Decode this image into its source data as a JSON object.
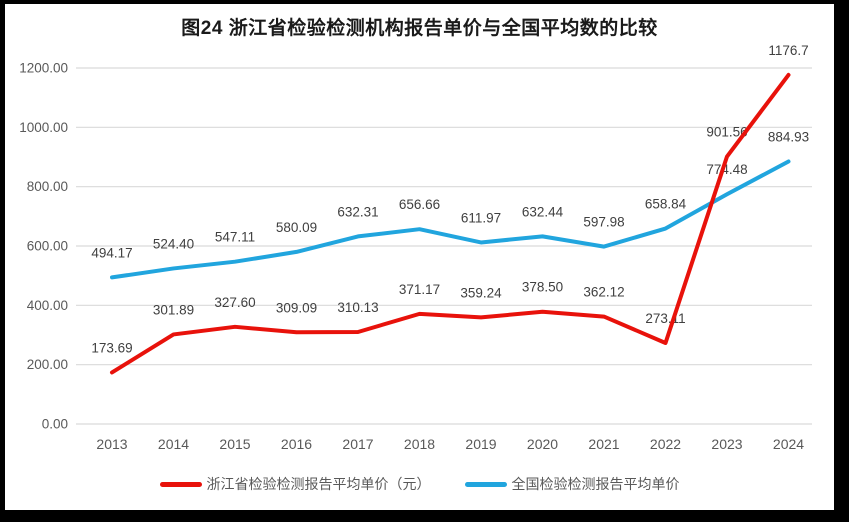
{
  "title": "图24  浙江省检验检测机构报告单价与全国平均数的比较",
  "colors": {
    "frame": "#000000",
    "background": "#ffffff"
  },
  "chart_data": {
    "type": "line",
    "title": "图24  浙江省检验检测机构报告单价与全国平均数的比较",
    "categories": [
      "2013",
      "2014",
      "2015",
      "2016",
      "2017",
      "2018",
      "2019",
      "2020",
      "2021",
      "2022",
      "2023",
      "2024"
    ],
    "series": [
      {
        "name": "浙江省检验检测报告平均单价（元）",
        "color": "#e8120b",
        "values": [
          173.69,
          301.89,
          327.6,
          309.09,
          310.13,
          371.17,
          359.24,
          378.5,
          362.12,
          273.11,
          901.56,
          1176.7
        ],
        "labels": [
          "173.69",
          "301.89",
          "327.60",
          "309.09",
          "310.13",
          "371.17",
          "359.24",
          "378.50",
          "362.12",
          "273.11",
          "901.56",
          "1176.7"
        ]
      },
      {
        "name": "全国检验检测报告平均单价",
        "color": "#21a5de",
        "values": [
          494.17,
          524.4,
          547.11,
          580.09,
          632.31,
          656.66,
          611.97,
          632.44,
          597.98,
          658.84,
          774.48,
          884.93
        ],
        "labels": [
          "494.17",
          "524.40",
          "547.11",
          "580.09",
          "632.31",
          "656.66",
          "611.97",
          "632.44",
          "597.98",
          "658.84",
          "774.48",
          "884.93"
        ]
      }
    ],
    "ylim": [
      0,
      1200
    ],
    "ytick_step": 200,
    "ytick_labels": [
      "0.00",
      "200.00",
      "400.00",
      "600.00",
      "800.00",
      "1000.00",
      "1200.00"
    ],
    "grid": true,
    "grid_color": "#d9d9d9",
    "axis_label_color": "#595959",
    "data_label_color": "#404040",
    "legend_position": "bottom",
    "xlabel": "",
    "ylabel": ""
  }
}
